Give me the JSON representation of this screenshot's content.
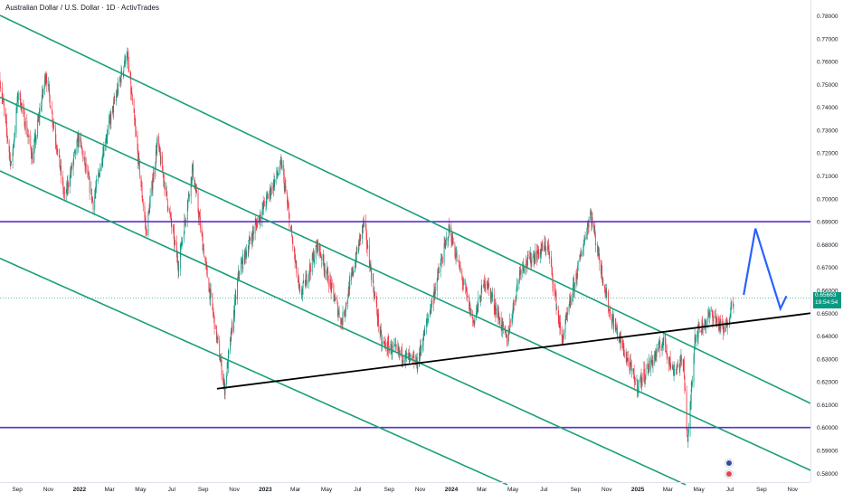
{
  "header": {
    "symbol_title": "Australian Dollar / U.S. Dollar · 1D · ActivTrades"
  },
  "price_scale": {
    "ticks": [
      "0.78000",
      "0.77000",
      "0.76000",
      "0.75000",
      "0.74000",
      "0.73000",
      "0.72000",
      "0.71000",
      "0.70000",
      "0.69000",
      "0.68000",
      "0.67000",
      "0.66000",
      "0.65000",
      "0.64000",
      "0.63000",
      "0.62000",
      "0.61000",
      "0.60000",
      "0.59000",
      "0.58000"
    ],
    "current_price": "0.65663",
    "countdown": "19:54:54"
  },
  "time_scale": {
    "labels": [
      "Sep",
      "Nov",
      "2022",
      "Mar",
      "May",
      "Jul",
      "Sep",
      "Nov",
      "2023",
      "Mar",
      "May",
      "Jul",
      "Sep",
      "Nov",
      "2024",
      "Mar",
      "May",
      "Jul",
      "Sep",
      "Nov",
      "2025",
      "Mar",
      "May",
      "Jul",
      "Sep",
      "Nov"
    ]
  },
  "colors": {
    "background": "#ffffff",
    "up_candle": "#089981",
    "down_candle": "#f23645",
    "channel_lines": "#1a9e7a",
    "horizontal_levels": "#5b2fc9",
    "trendline": "#000000",
    "projection_arrow": "#2962ff",
    "price_badge": "#089981",
    "axis_text": "#131722"
  },
  "chart_data": {
    "type": "candlestick",
    "title": "Australian Dollar / U.S. Dollar · 1D · ActivTrades",
    "ylim": [
      0.575,
      0.7855
    ],
    "y_ticks": [
      0.78,
      0.77,
      0.76,
      0.75,
      0.74,
      0.73,
      0.72,
      0.71,
      0.7,
      0.69,
      0.68,
      0.67,
      0.66,
      0.65,
      0.64,
      0.63,
      0.62,
      0.61,
      0.6,
      0.59,
      0.58
    ],
    "x_range": [
      "2021-07-29",
      "2025-12-06"
    ],
    "grid": false,
    "series_outline": [
      {
        "date": "2021-07-29",
        "price": 0.752
      },
      {
        "date": "2021-08-20",
        "price": 0.714
      },
      {
        "date": "2021-09-03",
        "price": 0.747
      },
      {
        "date": "2021-10-01",
        "price": 0.718
      },
      {
        "date": "2021-10-27",
        "price": 0.755
      },
      {
        "date": "2021-12-03",
        "price": 0.7
      },
      {
        "date": "2021-12-31",
        "price": 0.727
      },
      {
        "date": "2022-01-28",
        "price": 0.698
      },
      {
        "date": "2022-02-20",
        "price": 0.725
      },
      {
        "date": "2022-04-04",
        "price": 0.764
      },
      {
        "date": "2022-05-12",
        "price": 0.685
      },
      {
        "date": "2022-06-03",
        "price": 0.725
      },
      {
        "date": "2022-07-14",
        "price": 0.671
      },
      {
        "date": "2022-08-11",
        "price": 0.713
      },
      {
        "date": "2022-09-05",
        "price": 0.672
      },
      {
        "date": "2022-10-13",
        "price": 0.617
      },
      {
        "date": "2022-11-10",
        "price": 0.668
      },
      {
        "date": "2022-12-14",
        "price": 0.689
      },
      {
        "date": "2023-02-02",
        "price": 0.715
      },
      {
        "date": "2023-03-10",
        "price": 0.657
      },
      {
        "date": "2023-04-14",
        "price": 0.68
      },
      {
        "date": "2023-05-31",
        "price": 0.646
      },
      {
        "date": "2023-07-13",
        "price": 0.69
      },
      {
        "date": "2023-08-17",
        "price": 0.637
      },
      {
        "date": "2023-10-26",
        "price": 0.628
      },
      {
        "date": "2023-12-28",
        "price": 0.687
      },
      {
        "date": "2024-02-13",
        "price": 0.646
      },
      {
        "date": "2024-03-08",
        "price": 0.665
      },
      {
        "date": "2024-04-19",
        "price": 0.638
      },
      {
        "date": "2024-05-16",
        "price": 0.67
      },
      {
        "date": "2024-07-08",
        "price": 0.68
      },
      {
        "date": "2024-08-05",
        "price": 0.638
      },
      {
        "date": "2024-09-30",
        "price": 0.694
      },
      {
        "date": "2024-11-06",
        "price": 0.651
      },
      {
        "date": "2024-12-31",
        "price": 0.618
      },
      {
        "date": "2025-02-21",
        "price": 0.638
      },
      {
        "date": "2025-03-10",
        "price": 0.625
      },
      {
        "date": "2025-04-01",
        "price": 0.629
      },
      {
        "date": "2025-04-09",
        "price": 0.592
      },
      {
        "date": "2025-04-23",
        "price": 0.64
      },
      {
        "date": "2025-05-26",
        "price": 0.65
      },
      {
        "date": "2025-06-20",
        "price": 0.642
      },
      {
        "date": "2025-07-08",
        "price": 0.6566
      }
    ],
    "drawings": {
      "horizontal_levels": [
        0.69,
        0.6
      ],
      "channel_lines": [
        {
          "from": {
            "date": "2021-07-29",
            "price": 0.7802
          },
          "to": {
            "date": "2025-12-06",
            "price": 0.6106
          }
        },
        {
          "from": {
            "date": "2021-07-29",
            "price": 0.7444
          },
          "to": {
            "date": "2025-12-06",
            "price": 0.5813
          }
        },
        {
          "from": {
            "date": "2021-07-29",
            "price": 0.7122
          },
          "to": {
            "date": "2025-04-05",
            "price": 0.575
          }
        },
        {
          "from": {
            "date": "2021-07-29",
            "price": 0.674
          },
          "to": {
            "date": "2024-04-20",
            "price": 0.575
          }
        }
      ],
      "trendline": {
        "from": {
          "date": "2022-09-28",
          "price": 0.617
        },
        "to": {
          "date": "2025-12-06",
          "price": 0.65
        }
      },
      "projection_arrow": [
        {
          "date": "2025-07-28",
          "price": 0.658
        },
        {
          "date": "2025-08-20",
          "price": 0.687
        },
        {
          "date": "2025-10-08",
          "price": 0.652
        },
        {
          "date": "2025-10-20",
          "price": 0.6575
        }
      ]
    }
  }
}
